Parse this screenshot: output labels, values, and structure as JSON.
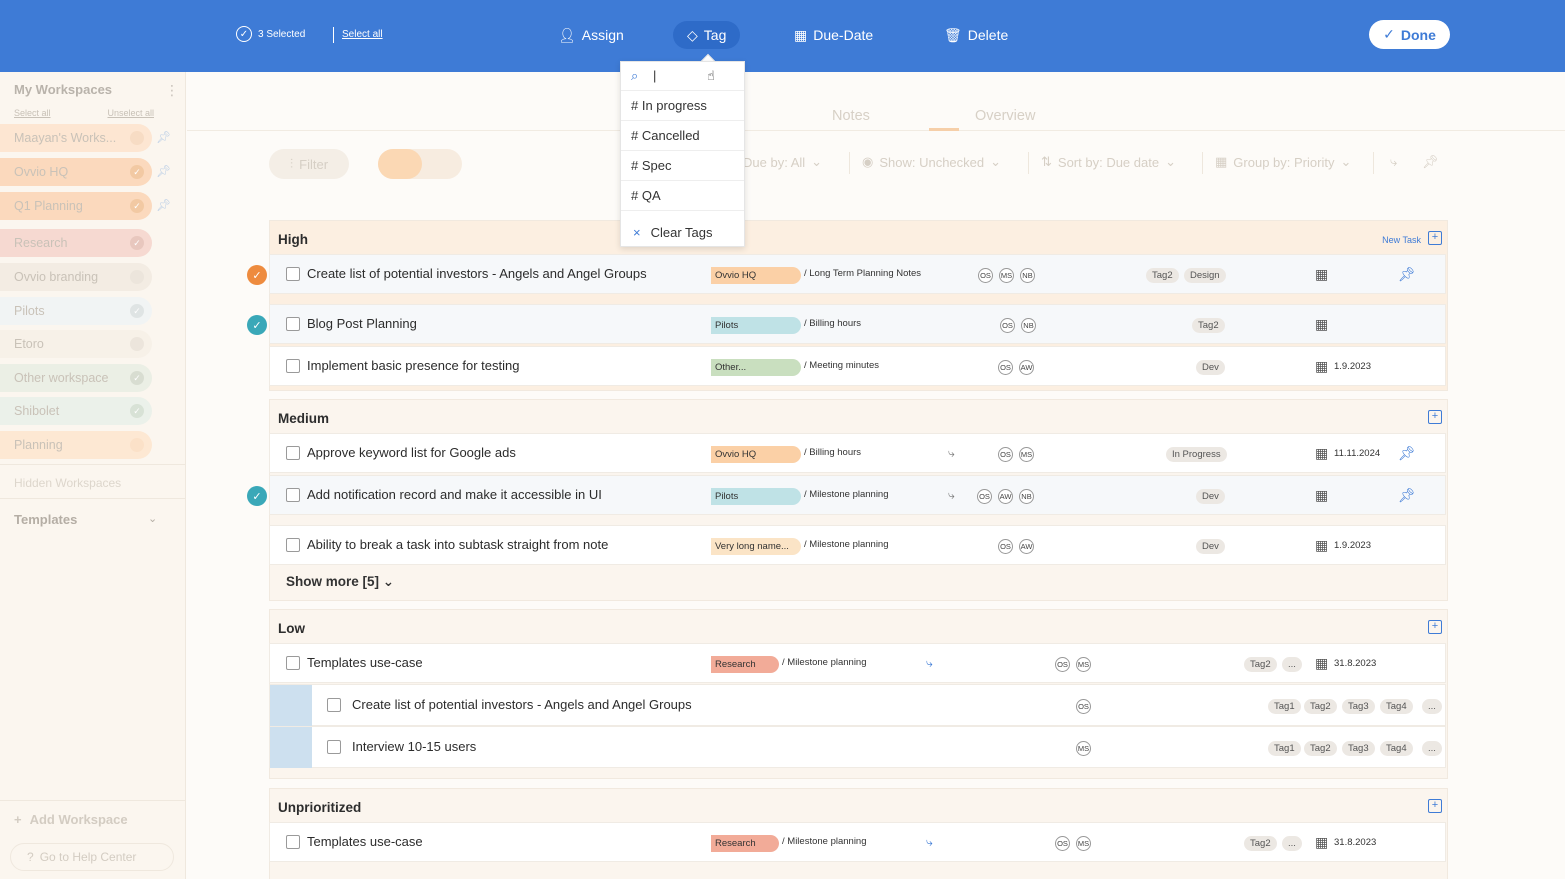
{
  "toolbar": {
    "selected_count": "3 Selected",
    "select_all": "Select all",
    "assign": "Assign",
    "tag": "Tag",
    "due_date": "Due-Date",
    "delete": "Delete",
    "done": "Done"
  },
  "tag_dropdown": {
    "search_value": "|",
    "items": [
      "# In progress",
      "# Cancelled",
      "# Spec",
      "# QA"
    ],
    "clear": "Clear Tags"
  },
  "sidebar": {
    "title": "My Workspaces",
    "select_all": "Select all",
    "unselect_all": "Unselect all",
    "workspaces": [
      {
        "name": "Maayan's Works...",
        "color": "#fde6d2"
      },
      {
        "name": "Ovvio HQ",
        "color": "#fbd9bd"
      },
      {
        "name": "Q1 Planning",
        "color": "#fbd9bd"
      },
      {
        "name": "Research",
        "color": "#f6d9d1"
      },
      {
        "name": "Ovvio branding",
        "color": "#f3ece3"
      },
      {
        "name": "Pilots",
        "color": "#f1f4f4"
      },
      {
        "name": "Etoro",
        "color": "#f7f1e8"
      },
      {
        "name": "Other workspace",
        "color": "#ebefe5"
      },
      {
        "name": "Shibolet",
        "color": "#ebf1ea"
      },
      {
        "name": "Planning",
        "color": "#fde8d3"
      }
    ],
    "hidden": "Hidden Workspaces",
    "templates": "Templates",
    "add_workspace": "Add Workspace",
    "help": "Go to Help Center"
  },
  "tabs": {
    "notes": "Notes",
    "overview": "Overview"
  },
  "filters": {
    "filter": "Filter",
    "due_by": "Due by: All",
    "show": "Show: Unchecked",
    "sort": "Sort by: Due date",
    "group": "Group by: Priority"
  },
  "groups": {
    "high": "High",
    "medium": "Medium",
    "low": "Low",
    "unprioritized": "Unprioritized",
    "new_task": "New Task",
    "show_more": "Show more [5]"
  },
  "tasks": [
    {
      "title": "Create list of potential investors - Angels and Angel Groups",
      "workspace": "Ovvio HQ",
      "note": "/ Long Term Planning Notes",
      "assignees": [
        "OS",
        "MS",
        "NB"
      ],
      "tags": [
        "Tag2",
        "Design"
      ],
      "date": ""
    },
    {
      "title": "Blog Post Planning",
      "workspace": "Pilots",
      "note": "/ Billing hours",
      "assignees": [
        "OS",
        "NB"
      ],
      "tags": [
        "Tag2"
      ],
      "date": ""
    },
    {
      "title": "Implement basic presence for testing",
      "workspace": "Other...",
      "note": "/ Meeting minutes",
      "assignees": [
        "OS",
        "AW"
      ],
      "tags": [
        "Dev"
      ],
      "date": "1.9.2023"
    },
    {
      "title": "Approve keyword list for Google ads",
      "workspace": "Ovvio HQ",
      "note": "/ Billing hours",
      "assignees": [
        "OS",
        "MS"
      ],
      "tags": [
        "In Progress"
      ],
      "date": "11.11.2024"
    },
    {
      "title": "Add notification record and make it accessible in UI",
      "workspace": "Pilots",
      "note": "/ Milestone planning",
      "assignees": [
        "OS",
        "AW",
        "NB"
      ],
      "tags": [
        "Dev"
      ],
      "date": ""
    },
    {
      "title": "Ability to break a task into subtask straight from note",
      "workspace": "Very long name...",
      "note": "/ Milestone planning",
      "assignees": [
        "OS",
        "AW"
      ],
      "tags": [
        "Dev"
      ],
      "date": "1.9.2023"
    },
    {
      "title": "Templates use-case",
      "workspace": "Research",
      "note": "/ Milestone planning",
      "assignees": [
        "OS",
        "MS"
      ],
      "tags": [
        "Tag2",
        "..."
      ],
      "date": "31.8.2023"
    },
    {
      "title": "Templates use-case",
      "workspace": "Research",
      "note": "/ Milestone planning",
      "assignees": [
        "OS",
        "MS"
      ],
      "tags": [
        "Tag2",
        "..."
      ],
      "date": "31.8.2023"
    }
  ],
  "subtasks": [
    {
      "title": "Create list of potential investors - Angels and Angel Groups",
      "assignees": [
        "OS"
      ],
      "tags": [
        "Tag1",
        "Tag2",
        "Tag3",
        "Tag4",
        "..."
      ]
    },
    {
      "title": "Interview 10-15 users",
      "assignees": [
        "MS"
      ],
      "tags": [
        "Tag1",
        "Tag2",
        "Tag3",
        "Tag4",
        "..."
      ]
    }
  ],
  "colors": {
    "accent": "#3e7bd6",
    "ovvio_hq": "#fbd0a6",
    "pilots": "#bfe2e6",
    "other": "#c9dfbf",
    "very_long": "#fbe4c6",
    "research": "#f2ab98"
  }
}
